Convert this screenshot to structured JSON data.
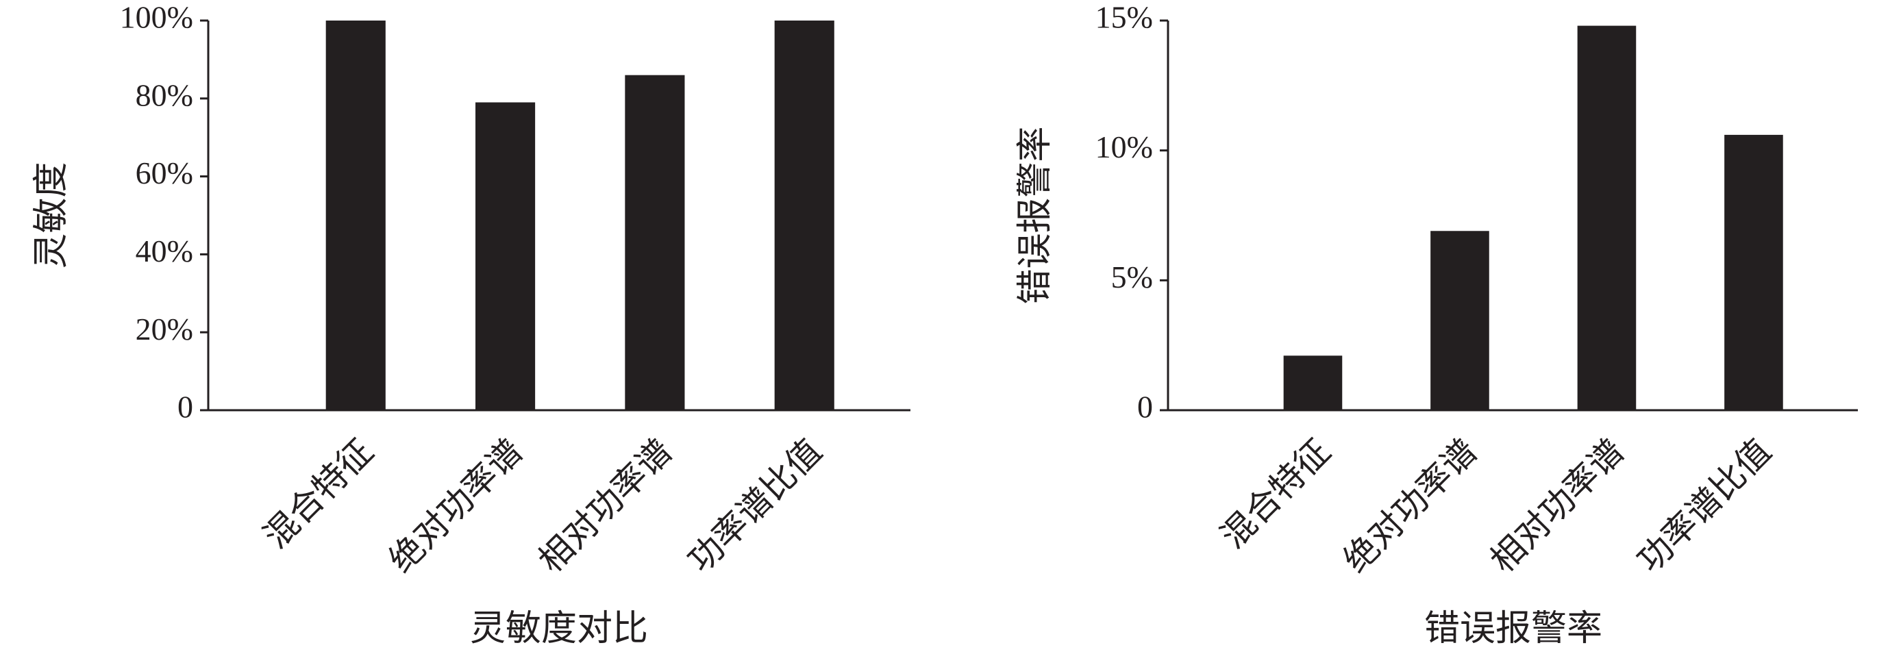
{
  "chart_data": [
    {
      "type": "bar",
      "title": "灵敏度对比",
      "y_label": "灵敏度",
      "categories": [
        "混合特征",
        "绝对功率谱",
        "相对功率谱",
        "功率谱比值"
      ],
      "values": [
        100,
        79,
        86,
        100
      ],
      "color": "#231f20",
      "ylim": [
        0,
        100
      ],
      "yticks": [
        0,
        {
          "value": 20,
          "label": "20%"
        },
        {
          "value": 40,
          "label": "40%"
        },
        {
          "value": 60,
          "label": "60%"
        },
        {
          "value": 80,
          "label": "80%"
        },
        {
          "value": 100,
          "label": "100%"
        }
      ]
    },
    {
      "type": "bar",
      "title": "错误报警率",
      "y_label": "错误报警率",
      "categories": [
        "混合特征",
        "绝对功率谱",
        "相对功率谱",
        "功率谱比值"
      ],
      "values": [
        2.1,
        6.9,
        14.8,
        10.6
      ],
      "color": "#231f20",
      "ylim": [
        0,
        15
      ],
      "yticks": [
        0,
        {
          "value": 5,
          "label": "5%"
        },
        {
          "value": 10,
          "label": "10%"
        },
        {
          "value": 15,
          "label": "15%"
        }
      ]
    }
  ]
}
